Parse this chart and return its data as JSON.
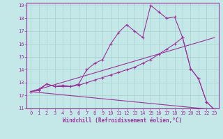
{
  "xlabel": "Windchill (Refroidissement éolien,°C)",
  "background_color": "#c4e8e8",
  "grid_color": "#a8d0d0",
  "line_color": "#993399",
  "xlim": [
    -0.5,
    23.5
  ],
  "ylim": [
    11,
    19.2
  ],
  "xticks": [
    0,
    1,
    2,
    3,
    4,
    5,
    6,
    7,
    8,
    9,
    10,
    11,
    12,
    13,
    14,
    15,
    16,
    17,
    18,
    19,
    20,
    21,
    22,
    23
  ],
  "yticks": [
    11,
    12,
    13,
    14,
    15,
    16,
    17,
    18,
    19
  ],
  "line1_x": [
    0,
    1,
    2,
    3,
    4,
    5,
    6,
    7,
    8,
    9,
    10,
    11,
    12,
    13,
    14,
    15,
    16,
    17,
    18,
    19,
    20,
    21,
    22,
    23
  ],
  "line1_y": [
    12.3,
    12.5,
    12.9,
    12.7,
    12.8,
    12.7,
    12.9,
    14.0,
    14.5,
    14.8,
    16.0,
    16.9,
    17.5,
    17.0,
    16.5,
    19.0,
    18.5,
    18.0,
    18.1,
    16.5,
    14.1,
    13.3,
    11.5,
    10.9
  ],
  "line2_x": [
    0,
    23
  ],
  "line2_y": [
    12.3,
    16.5
  ],
  "line3_x": [
    0,
    23
  ],
  "line3_y": [
    12.3,
    10.9
  ],
  "line4_x": [
    0,
    1,
    2,
    3,
    4,
    5,
    6,
    7,
    8,
    9,
    10,
    11,
    12,
    13,
    14,
    15,
    16,
    17,
    18,
    19,
    20,
    21,
    22,
    23
  ],
  "line4_y": [
    12.3,
    12.4,
    12.9,
    12.7,
    12.7,
    12.7,
    12.8,
    13.0,
    13.2,
    13.4,
    13.6,
    13.8,
    14.0,
    14.2,
    14.5,
    14.8,
    15.2,
    15.6,
    16.0,
    16.5,
    14.1,
    13.3,
    11.5,
    10.9
  ]
}
